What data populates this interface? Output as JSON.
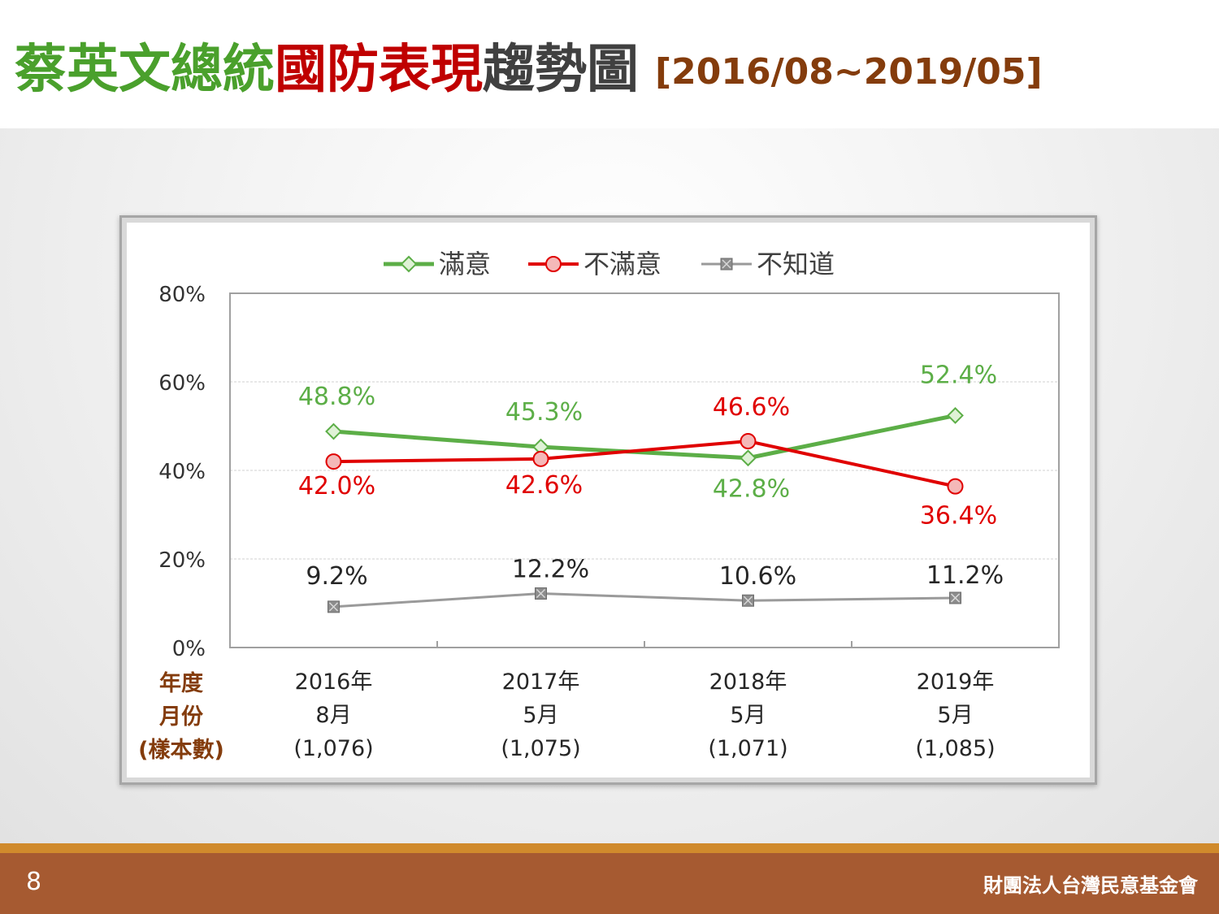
{
  "title": {
    "part1": "蔡英文總統",
    "part2": "國防表現",
    "part3": "趨勢圖",
    "range": "[2016/08~2019/05]"
  },
  "colors": {
    "satisfied": "#5cae47",
    "dissatisfied": "#e00000",
    "unknown": "#9a9a9a",
    "title_green": "#4aa02c",
    "title_red": "#c00000",
    "footer": "#a65a31",
    "footer_stripe": "#d08a2c",
    "row_header": "#843c0c"
  },
  "chart_data": {
    "type": "line",
    "categories": [
      "2016年 8月",
      "2017年 5月",
      "2018年 5月",
      "2019年 5月"
    ],
    "category_lines": [
      [
        "2016年",
        "8月",
        "(1,076)"
      ],
      [
        "2017年",
        "5月",
        "(1,075)"
      ],
      [
        "2018年",
        "5月",
        "(1,071)"
      ],
      [
        "2019年",
        "5月",
        "(1,085)"
      ]
    ],
    "row_header": [
      "年度",
      "月份",
      "(樣本數)"
    ],
    "y_ticks": [
      "0%",
      "20%",
      "40%",
      "60%",
      "80%"
    ],
    "ylim": [
      0,
      80
    ],
    "grid": true,
    "legend_position": "top",
    "series": [
      {
        "name": "滿意",
        "values": [
          48.8,
          45.3,
          42.8,
          52.4
        ],
        "labels": [
          "48.8%",
          "45.3%",
          "42.8%",
          "52.4%"
        ],
        "marker": "diamond"
      },
      {
        "name": "不滿意",
        "values": [
          42.0,
          42.6,
          46.6,
          36.4
        ],
        "labels": [
          "42.0%",
          "42.6%",
          "46.6%",
          "36.4%"
        ],
        "marker": "circle"
      },
      {
        "name": "不知道",
        "values": [
          9.2,
          12.2,
          10.6,
          11.2
        ],
        "labels": [
          "9.2%",
          "12.2%",
          "10.6%",
          "11.2%"
        ],
        "marker": "square-x"
      }
    ]
  },
  "footer": {
    "page": "8",
    "org": "財團法人台灣民意基金會"
  }
}
